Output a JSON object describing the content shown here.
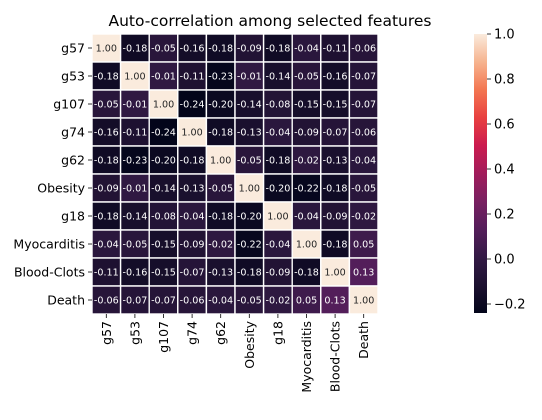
{
  "chart_data": {
    "type": "heatmap",
    "title": "Auto-correlation among selected features",
    "row_labels": [
      "g57",
      "g53",
      "g107",
      "g74",
      "g62",
      "Obesity",
      "g18",
      "Myocarditis",
      "Blood-Clots",
      "Death"
    ],
    "col_labels": [
      "g57",
      "g53",
      "g107",
      "g74",
      "g62",
      "Obesity",
      "g18",
      "Myocarditis",
      "Blood-Clots",
      "Death"
    ],
    "values": [
      [
        1.0,
        -0.18,
        -0.05,
        -0.16,
        -0.18,
        -0.09,
        -0.18,
        -0.04,
        -0.11,
        -0.06
      ],
      [
        -0.18,
        1.0,
        -0.01,
        -0.11,
        -0.23,
        -0.01,
        -0.14,
        -0.05,
        -0.16,
        -0.07
      ],
      [
        -0.05,
        -0.01,
        1.0,
        -0.24,
        -0.2,
        -0.14,
        -0.08,
        -0.15,
        -0.15,
        -0.07
      ],
      [
        -0.16,
        -0.11,
        -0.24,
        1.0,
        -0.18,
        -0.13,
        -0.04,
        -0.09,
        -0.07,
        -0.06
      ],
      [
        -0.18,
        -0.23,
        -0.2,
        -0.18,
        1.0,
        -0.05,
        -0.18,
        -0.02,
        -0.13,
        -0.04
      ],
      [
        -0.09,
        -0.01,
        -0.14,
        -0.13,
        -0.05,
        1.0,
        -0.2,
        -0.22,
        -0.18,
        -0.05
      ],
      [
        -0.18,
        -0.14,
        -0.08,
        -0.04,
        -0.18,
        -0.2,
        1.0,
        -0.04,
        -0.09,
        -0.02
      ],
      [
        -0.04,
        -0.05,
        -0.15,
        -0.09,
        -0.02,
        -0.22,
        -0.04,
        1.0,
        -0.18,
        0.05
      ],
      [
        -0.11,
        -0.16,
        -0.15,
        -0.07,
        -0.13,
        -0.18,
        -0.09,
        -0.18,
        1.0,
        0.13
      ],
      [
        -0.06,
        -0.07,
        -0.07,
        -0.06,
        -0.04,
        -0.05,
        -0.02,
        0.05,
        0.13,
        1.0
      ]
    ],
    "colorbar": {
      "vmin": -0.24,
      "vmax": 1.0,
      "ticks": [
        -0.2,
        0.0,
        0.2,
        0.4,
        0.6,
        0.8,
        1.0
      ],
      "tick_labels": [
        "−0.2",
        "0.0",
        "0.2",
        "0.4",
        "0.6",
        "0.8",
        "1.0"
      ],
      "colormap": "rocket"
    },
    "annotations": true,
    "grid_lines": "white"
  }
}
